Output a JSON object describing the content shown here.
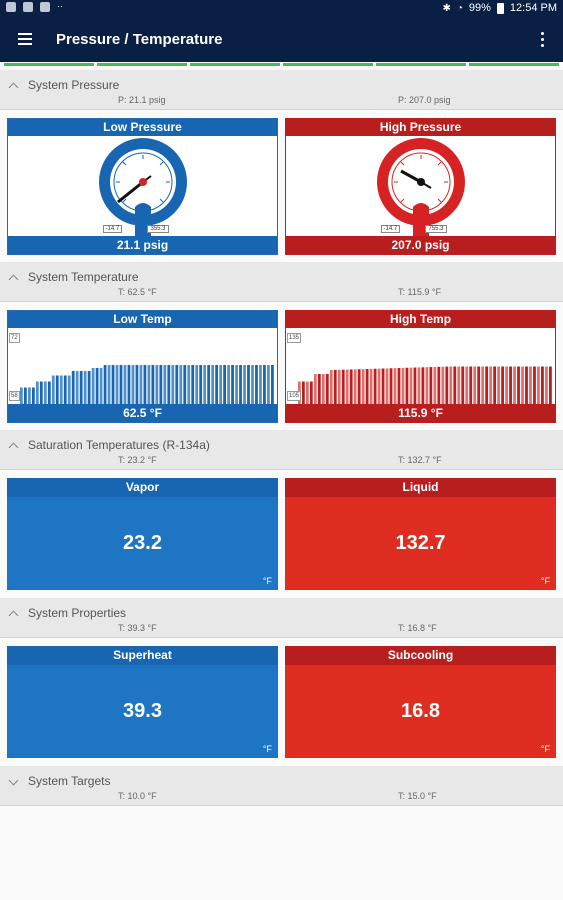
{
  "status": {
    "battery": "99%",
    "time": "12:54 PM"
  },
  "app": {
    "title": "Pressure / Temperature"
  },
  "colors": {
    "blue": "#1865b2",
    "red": "#b81e1e",
    "navy": "#0a1f44",
    "green": "#50b45a"
  },
  "sections": {
    "pressure": {
      "title": "System Pressure",
      "left": "P: 21.1 psig",
      "right": "P: 207.0 psig"
    },
    "temperature": {
      "title": "System Temperature",
      "left": "T: 62.5 °F",
      "right": "T: 115.9 °F"
    },
    "saturation": {
      "title": "Saturation Temperatures (R-134a)",
      "left": "T: 23.2 °F",
      "right": "T: 132.7 °F"
    },
    "properties": {
      "title": "System Properties",
      "left": "T: 39.3 °F",
      "right": "T: 16.8 °F"
    },
    "targets": {
      "title": "System Targets",
      "left": "T: 10.0 °F",
      "right": "T: 15.0 °F"
    }
  },
  "gauges": {
    "low": {
      "title": "Low Pressure",
      "reading": "21.1 psig",
      "min": "-14.7",
      "max": "355.3",
      "value": 21.1
    },
    "high": {
      "title": "High Pressure",
      "reading": "207.0 psig",
      "min": "-14.7",
      "max": "755.3",
      "value": 207.0
    }
  },
  "temps": {
    "low": {
      "title": "Low Temp",
      "reading": "62.5 °F",
      "top": "72",
      "bottom": "58"
    },
    "high": {
      "title": "High Temp",
      "reading": "115.9 °F",
      "top": "135",
      "bottom": "105"
    }
  },
  "saturation_cards": {
    "vapor": {
      "title": "Vapor",
      "value": "23.2",
      "unit": "°F"
    },
    "liquid": {
      "title": "Liquid",
      "value": "132.7",
      "unit": "°F"
    }
  },
  "property_cards": {
    "superheat": {
      "title": "Superheat",
      "value": "39.3",
      "unit": "°F"
    },
    "subcooling": {
      "title": "Subcooling",
      "value": "16.8",
      "unit": "°F"
    }
  }
}
